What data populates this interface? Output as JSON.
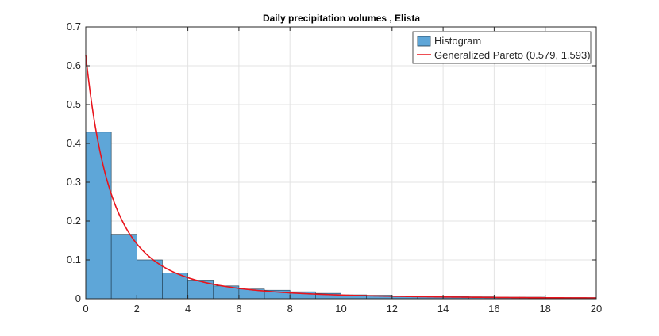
{
  "chart_data": {
    "type": "bar",
    "title": "Daily precipitation volumes , Elista",
    "xlabel": "",
    "ylabel": "",
    "xlim": [
      0,
      20
    ],
    "ylim": [
      0,
      0.7
    ],
    "xticks": [
      0,
      2,
      4,
      6,
      8,
      10,
      12,
      14,
      16,
      18,
      20
    ],
    "yticks": [
      0,
      0.1,
      0.2,
      0.3,
      0.4,
      0.5,
      0.6,
      0.7
    ],
    "grid": true,
    "legend_position": "top-right",
    "histogram": {
      "name": "Histogram",
      "color": "#5ea6d8",
      "edge_color": "#1f3a4d",
      "bin_width": 1,
      "bin_edges": [
        0,
        1,
        2,
        3,
        4,
        5,
        6,
        7,
        8,
        9,
        10,
        11,
        12,
        13,
        14,
        15,
        16,
        17,
        18,
        19,
        20
      ],
      "values": [
        0.429,
        0.166,
        0.1,
        0.066,
        0.048,
        0.033,
        0.025,
        0.022,
        0.018,
        0.014,
        0.01,
        0.009,
        0.007,
        0.006,
        0.006,
        0.005,
        0.004,
        0.004,
        0.003,
        0.003
      ]
    },
    "fit": {
      "name": "Generalized Pareto (0.579, 1.593)",
      "color": "#e8141c",
      "distribution": "generalized_pareto",
      "shape": 0.579,
      "scale": 1.593
    }
  }
}
